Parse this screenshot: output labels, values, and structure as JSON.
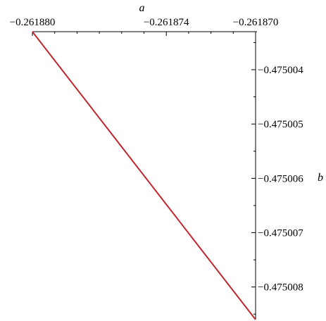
{
  "chart_data": {
    "type": "line",
    "title": "",
    "xlabel": "a",
    "ylabel": "b",
    "x_axis_position": "top",
    "y_axis_position": "right",
    "xlim": [
      -0.26188,
      -0.26187
    ],
    "ylim": [
      -0.4750086,
      -0.4750033
    ],
    "x_ticks": [
      {
        "value": -0.26188,
        "label": "−0.261880"
      },
      {
        "value": -0.261874,
        "label": "−0.261874"
      },
      {
        "value": -0.26187,
        "label": "−0.261870"
      }
    ],
    "x_minor_ticks": [
      -0.261879,
      -0.261878,
      -0.261877,
      -0.261876,
      -0.261875,
      -0.261873,
      -0.261872,
      -0.261871
    ],
    "y_ticks": [
      {
        "value": -0.475004,
        "label": "−0.475004"
      },
      {
        "value": -0.475005,
        "label": "−0.475005"
      },
      {
        "value": -0.475006,
        "label": "−0.475006"
      },
      {
        "value": -0.475007,
        "label": "−0.475007"
      },
      {
        "value": -0.475008,
        "label": "−0.475008"
      }
    ],
    "y_minor_ticks": [
      -0.4750035,
      -0.4750045,
      -0.4750055,
      -0.4750065,
      -0.4750075,
      -0.4750085
    ],
    "grid": false,
    "series": [
      {
        "color": "#c0272d",
        "x": [
          -0.26188,
          -0.26187
        ],
        "y": [
          -0.4750033,
          -0.4750086
        ]
      }
    ]
  }
}
